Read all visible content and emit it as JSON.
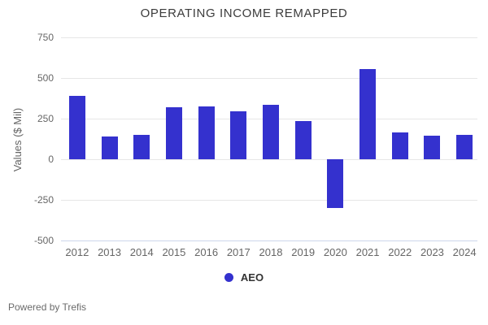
{
  "footer": {
    "powered_by": "Powered by Trefis"
  },
  "chart_data": {
    "type": "bar",
    "title": "OPERATING INCOME REMAPPED",
    "xlabel": "",
    "ylabel": "Values ($ Mil)",
    "categories": [
      "2012",
      "2013",
      "2014",
      "2015",
      "2016",
      "2017",
      "2018",
      "2019",
      "2020",
      "2021",
      "2022",
      "2023",
      "2024"
    ],
    "series": [
      {
        "name": "AEO",
        "color": "#3431ce",
        "values": [
          390,
          138,
          151,
          318,
          327,
          297,
          336,
          233,
          -299,
          556,
          165,
          145,
          152
        ]
      }
    ],
    "ylim": [
      -500,
      750
    ],
    "yticks": [
      750,
      500,
      250,
      0,
      -250,
      -500
    ],
    "grid": true,
    "legend_position": "bottom-center",
    "colors": {
      "grid": "#e6e6e6",
      "axis_line": "#ccd6eb",
      "tick_label": "#666666",
      "title": "#3c3c3c"
    }
  }
}
